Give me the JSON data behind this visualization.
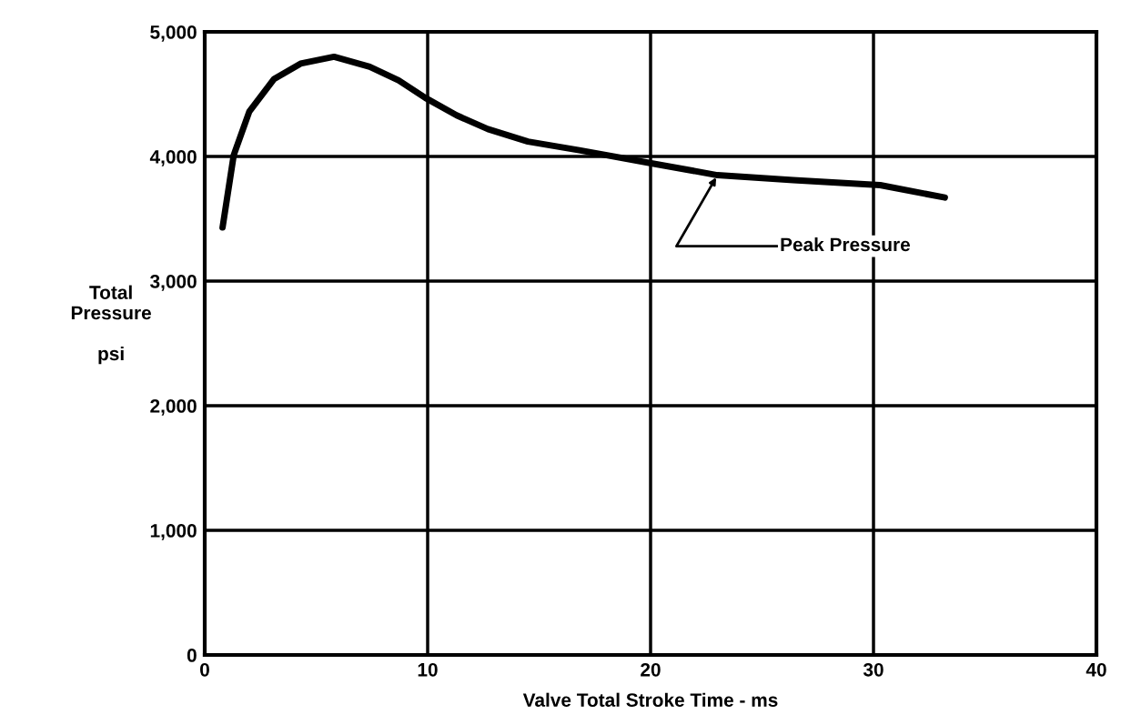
{
  "chart_data": {
    "type": "line",
    "xlabel": "Valve Total Stroke Time - ms",
    "ylabel": "Total\nPressure\n\npsi",
    "xlim": [
      0,
      40
    ],
    "xticks": [
      0,
      10,
      20,
      30,
      40
    ],
    "ylim": [
      0,
      5000
    ],
    "yticks": [
      0,
      {
        "value": 1000,
        "label": "1,000"
      },
      {
        "value": 2000,
        "label": "2,000"
      },
      {
        "value": 3000,
        "label": "3,000"
      },
      {
        "value": 4000,
        "label": "4,000"
      },
      {
        "value": 5000,
        "label": "5,000"
      }
    ],
    "grid": true,
    "legend": false,
    "marker": "none",
    "line_style": "solid",
    "series": [
      {
        "color": "#000000",
        "x": [
          0.8,
          1.3,
          2.0,
          3.1,
          4.3,
          5.8,
          7.4,
          8.7,
          9.9,
          11.3,
          12.7,
          14.5,
          16.8,
          20.2,
          23.0,
          26.4,
          30.3,
          33.2
        ],
        "values": [
          3430,
          4010,
          4360,
          4620,
          4745,
          4800,
          4720,
          4610,
          4470,
          4330,
          4220,
          4120,
          4050,
          3940,
          3850,
          3810,
          3770,
          3670
        ]
      }
    ],
    "annotations": [
      {
        "text": "Peak Pressure",
        "x": 23.0,
        "y": 3850
      }
    ]
  }
}
